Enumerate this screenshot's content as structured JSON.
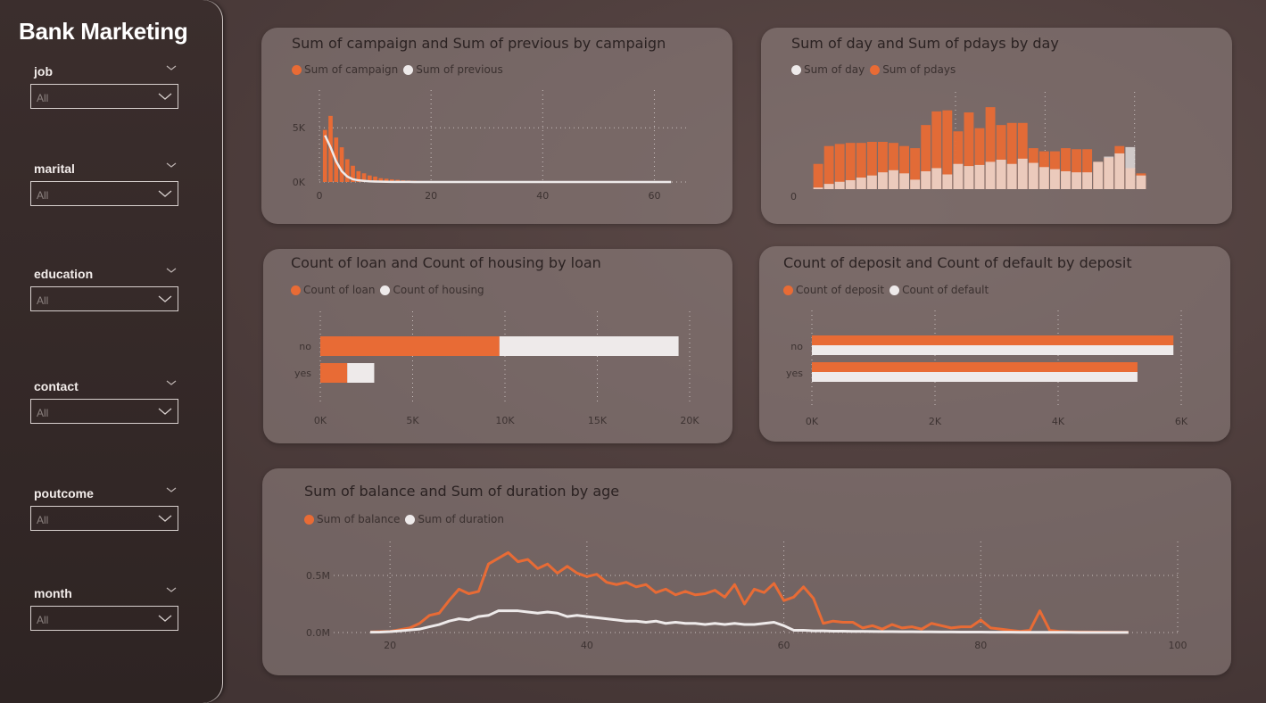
{
  "app": {
    "title": "Bank Marketing"
  },
  "colors": {
    "orange": "#e86b35",
    "white": "#eeeaea",
    "grid": "#c9bfbd"
  },
  "slicers": [
    {
      "label": "job",
      "value": "All"
    },
    {
      "label": "marital",
      "value": "All"
    },
    {
      "label": "education",
      "value": "All"
    },
    {
      "label": "contact",
      "value": "All"
    },
    {
      "label": "poutcome",
      "value": "All"
    },
    {
      "label": "month",
      "value": "All"
    }
  ],
  "charts": {
    "campaign": {
      "title": "Sum of campaign and Sum of previous by campaign",
      "legend": [
        "Sum of campaign",
        "Sum of previous"
      ]
    },
    "day": {
      "title": "Sum of day and Sum of pdays by day",
      "legend": [
        "Sum of day",
        "Sum of pdays"
      ]
    },
    "loan": {
      "title": "Count of loan and Count of housing by loan",
      "legend": [
        "Count of loan",
        "Count of housing"
      ]
    },
    "deposit": {
      "title": "Count of deposit and Count of default by deposit",
      "legend": [
        "Count of deposit",
        "Count of default"
      ]
    },
    "age": {
      "title": "Sum of balance and Sum of duration by age",
      "legend": [
        "Sum of balance",
        "Sum of duration"
      ]
    }
  },
  "chart_data": [
    {
      "type": "bar",
      "title": "Sum of campaign and Sum of previous by campaign",
      "x": [
        1,
        2,
        3,
        4,
        5,
        6,
        7,
        8,
        9,
        10,
        11,
        12,
        13,
        14,
        15,
        16,
        17,
        18,
        19,
        20,
        21,
        22,
        23,
        24,
        25,
        26,
        27,
        28,
        29,
        30,
        31,
        32,
        33,
        41,
        43,
        63
      ],
      "series": [
        {
          "name": "Sum of campaign",
          "kind": "bar",
          "values": [
            4800,
            6100,
            4100,
            3200,
            2100,
            1500,
            1000,
            800,
            600,
            500,
            350,
            300,
            240,
            200,
            150,
            130,
            110,
            90,
            70,
            60,
            50,
            40,
            30,
            20,
            20,
            15,
            15,
            10,
            10,
            10,
            8,
            8,
            6,
            4,
            3,
            2
          ]
        },
        {
          "name": "Sum of previous",
          "kind": "line",
          "values": [
            4300,
            3200,
            1900,
            1000,
            500,
            250,
            150,
            100,
            60,
            40,
            30,
            20,
            15,
            10,
            8,
            6,
            5,
            4,
            3,
            3,
            2,
            2,
            1,
            1,
            1,
            1,
            1,
            0,
            0,
            0,
            0,
            0,
            0,
            0,
            0,
            0
          ]
        }
      ],
      "xticks": [
        "0",
        "20",
        "40",
        "60"
      ],
      "yticks": [
        "0K",
        "5K"
      ],
      "xlim": [
        0,
        66
      ],
      "ylim": [
        0,
        6500
      ]
    },
    {
      "type": "area",
      "title": "Sum of day and Sum of pdays by day",
      "x": [
        1,
        2,
        3,
        4,
        5,
        6,
        7,
        8,
        9,
        10,
        11,
        12,
        13,
        14,
        15,
        16,
        17,
        18,
        19,
        20,
        21,
        22,
        23,
        24,
        25,
        26,
        27,
        28,
        29,
        30,
        31
      ],
      "series": [
        {
          "name": "Sum of day",
          "values": [
            150,
            500,
            700,
            850,
            1100,
            1300,
            1600,
            1800,
            1500,
            900,
            1700,
            2000,
            1400,
            2400,
            2200,
            2300,
            2600,
            2800,
            2400,
            2900,
            2500,
            2100,
            1900,
            1700,
            1600,
            1600,
            2600,
            3100,
            3400,
            4000,
            1300
          ]
        },
        {
          "name": "Sum of pdays",
          "values": [
            2400,
            4100,
            4300,
            4400,
            4400,
            4500,
            4500,
            4400,
            4100,
            3900,
            6100,
            7400,
            7500,
            5500,
            7300,
            5800,
            7800,
            6100,
            6300,
            6300,
            3900,
            3600,
            3600,
            3900,
            3800,
            3800,
            2600,
            3000,
            4100,
            2000,
            1500
          ]
        }
      ],
      "xticks": [],
      "yticks": [
        "0"
      ],
      "xlim": [
        0,
        32
      ],
      "ylim": [
        0,
        9000
      ]
    },
    {
      "type": "bar",
      "orientation": "horizontal",
      "stacked": true,
      "title": "Count of loan and Count of housing by loan",
      "categories": [
        "no",
        "yes"
      ],
      "series": [
        {
          "name": "Count of loan",
          "values": [
            9700,
            1460
          ]
        },
        {
          "name": "Count of housing",
          "values": [
            9700,
            1460
          ]
        }
      ],
      "xticks": [
        "0K",
        "5K",
        "10K",
        "15K",
        "20K"
      ],
      "xlim": [
        0,
        20000
      ]
    },
    {
      "type": "bar",
      "orientation": "horizontal",
      "title": "Count of deposit and Count of default by deposit",
      "categories": [
        "no",
        "yes"
      ],
      "series": [
        {
          "name": "Count of deposit",
          "values": [
            5873,
            5289
          ]
        },
        {
          "name": "Count of default",
          "values": [
            5873,
            5289
          ]
        }
      ],
      "xticks": [
        "0K",
        "2K",
        "4K",
        "6K"
      ],
      "xlim": [
        0,
        6000
      ]
    },
    {
      "type": "line",
      "title": "Sum of balance and Sum of duration by age",
      "x": [
        18,
        19,
        20,
        21,
        22,
        23,
        24,
        25,
        26,
        27,
        28,
        29,
        30,
        31,
        32,
        33,
        34,
        35,
        36,
        37,
        38,
        39,
        40,
        41,
        42,
        43,
        44,
        45,
        46,
        47,
        48,
        49,
        50,
        51,
        52,
        53,
        54,
        55,
        56,
        57,
        58,
        59,
        60,
        61,
        62,
        63,
        64,
        65,
        66,
        67,
        68,
        69,
        70,
        71,
        72,
        73,
        74,
        75,
        76,
        77,
        78,
        79,
        80,
        81,
        82,
        83,
        84,
        85,
        86,
        87,
        88,
        89,
        90,
        92,
        93,
        95
      ],
      "series": [
        {
          "name": "Sum of balance",
          "values": [
            5000,
            8000,
            10000,
            25000,
            40000,
            80000,
            150000,
            170000,
            280000,
            380000,
            340000,
            360000,
            600000,
            650000,
            700000,
            620000,
            640000,
            560000,
            600000,
            520000,
            580000,
            520000,
            490000,
            510000,
            440000,
            420000,
            440000,
            400000,
            420000,
            350000,
            380000,
            330000,
            360000,
            330000,
            340000,
            370000,
            310000,
            420000,
            250000,
            380000,
            350000,
            430000,
            280000,
            310000,
            400000,
            300000,
            80000,
            100000,
            90000,
            90000,
            40000,
            60000,
            30000,
            70000,
            40000,
            50000,
            30000,
            80000,
            60000,
            40000,
            50000,
            50000,
            110000,
            40000,
            30000,
            20000,
            10000,
            20000,
            190000,
            20000,
            10000,
            5000,
            5000,
            4000,
            3000,
            2000
          ]
        },
        {
          "name": "Sum of duration",
          "values": [
            3000,
            4000,
            8000,
            15000,
            22000,
            30000,
            50000,
            70000,
            100000,
            120000,
            110000,
            140000,
            150000,
            190000,
            190000,
            190000,
            180000,
            170000,
            180000,
            170000,
            140000,
            150000,
            140000,
            130000,
            120000,
            110000,
            100000,
            100000,
            90000,
            100000,
            80000,
            90000,
            80000,
            80000,
            70000,
            80000,
            70000,
            80000,
            70000,
            70000,
            80000,
            90000,
            60000,
            20000,
            20000,
            15000,
            15000,
            12000,
            12000,
            10000,
            10000,
            9000,
            8000,
            8000,
            7000,
            7000,
            6000,
            6000,
            5000,
            5000,
            4000,
            4000,
            4000,
            3000,
            3000,
            3000,
            2000,
            2000,
            2000,
            2000,
            1500,
            1500,
            1000,
            1000,
            1000,
            1000
          ]
        }
      ],
      "xticks": [
        "20",
        "40",
        "60",
        "80",
        "100"
      ],
      "yticks": [
        "0.0M",
        "0.5M"
      ],
      "xlim": [
        18,
        100
      ],
      "ylim": [
        0,
        800000
      ]
    }
  ]
}
